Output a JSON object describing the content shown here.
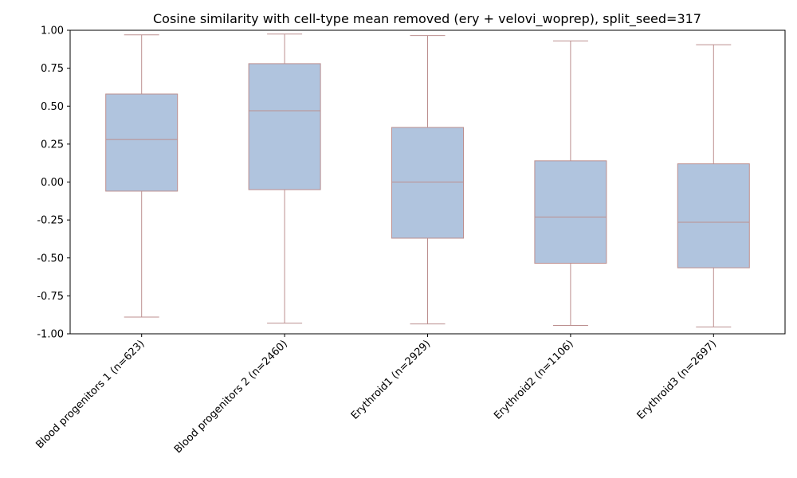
{
  "chart_data": {
    "type": "box",
    "title": "Cosine similarity with cell-type mean removed (ery + velovi_woprep), split_seed=317",
    "xlabel": "",
    "ylabel": "",
    "ylim": [
      -1.0,
      1.0
    ],
    "yticks": [
      "-1.00",
      "-0.75",
      "-0.50",
      "-0.25",
      "0.00",
      "0.25",
      "0.50",
      "0.75",
      "1.00"
    ],
    "ytick_values": [
      -1.0,
      -0.75,
      -0.5,
      -0.25,
      0.0,
      0.25,
      0.5,
      0.75,
      1.0
    ],
    "categories": [
      "Blood progenitors 1 (n=623)",
      "Blood progenitors 2 (n=2460)",
      "Erythroid1 (n=2929)",
      "Erythroid2 (n=1106)",
      "Erythroid3 (n=2697)"
    ],
    "boxes": [
      {
        "whislo": -0.89,
        "q1": -0.06,
        "med": 0.28,
        "q3": 0.58,
        "whishi": 0.97
      },
      {
        "whislo": -0.93,
        "q1": -0.05,
        "med": 0.47,
        "q3": 0.78,
        "whishi": 0.975
      },
      {
        "whislo": -0.935,
        "q1": -0.37,
        "med": 0.0,
        "q3": 0.36,
        "whishi": 0.965
      },
      {
        "whislo": -0.945,
        "q1": -0.535,
        "med": -0.23,
        "q3": 0.14,
        "whishi": 0.93
      },
      {
        "whislo": -0.955,
        "q1": -0.565,
        "med": -0.265,
        "q3": 0.12,
        "whishi": 0.905
      }
    ],
    "grid": false,
    "colors": {
      "box_fill": "#b0c4de",
      "box_edge": "#bc8f8f",
      "axis": "#000000"
    }
  }
}
